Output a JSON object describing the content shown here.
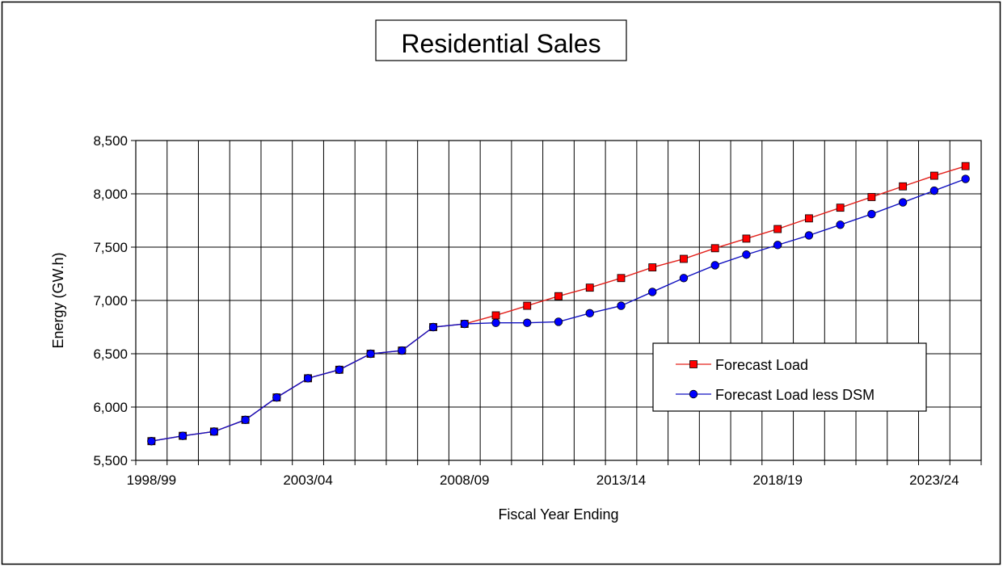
{
  "chart_data": {
    "type": "line",
    "title": "Residential Sales",
    "xlabel": "Fiscal Year Ending",
    "ylabel": "Energy (GW.h)",
    "ylim": [
      5500,
      8500
    ],
    "yticks": [
      5500,
      6000,
      6500,
      7000,
      7500,
      8000,
      8500
    ],
    "ytick_labels": [
      "5,500",
      "6,000",
      "6,500",
      "7,000",
      "7,500",
      "8,000",
      "8,500"
    ],
    "x": [
      "1998/99",
      "1999/00",
      "2000/01",
      "2001/02",
      "2002/03",
      "2003/04",
      "2004/05",
      "2005/06",
      "2006/07",
      "2007/08",
      "2008/09",
      "2009/10",
      "2010/11",
      "2011/12",
      "2012/13",
      "2013/14",
      "2014/15",
      "2015/16",
      "2016/17",
      "2017/18",
      "2018/19",
      "2019/20",
      "2020/21",
      "2021/22",
      "2022/23",
      "2023/24",
      "2024/25"
    ],
    "xtick_labels_shown": [
      "1998/99",
      "2003/04",
      "2008/09",
      "2013/14",
      "2018/19",
      "2023/24"
    ],
    "grid": true,
    "legend_position": "lower-right",
    "series": [
      {
        "name": "Forecast Load",
        "color": "#e3201b",
        "marker_color": "#ff0000",
        "marker": "square",
        "values": [
          5680,
          5730,
          5770,
          5880,
          6090,
          6270,
          6350,
          6500,
          6530,
          6750,
          6780,
          6860,
          6950,
          7040,
          7120,
          7210,
          7310,
          7390,
          7490,
          7580,
          7670,
          7770,
          7870,
          7970,
          8070,
          8170,
          8260
        ]
      },
      {
        "name": "Forecast Load less DSM",
        "color": "#1010c0",
        "marker_color": "#0000ff",
        "marker": "circle",
        "values": [
          5680,
          5730,
          5770,
          5880,
          6090,
          6270,
          6350,
          6500,
          6530,
          6750,
          6780,
          6790,
          6790,
          6800,
          6880,
          6950,
          7080,
          7210,
          7330,
          7430,
          7520,
          7610,
          7710,
          7810,
          7920,
          8030,
          8140
        ]
      }
    ]
  }
}
